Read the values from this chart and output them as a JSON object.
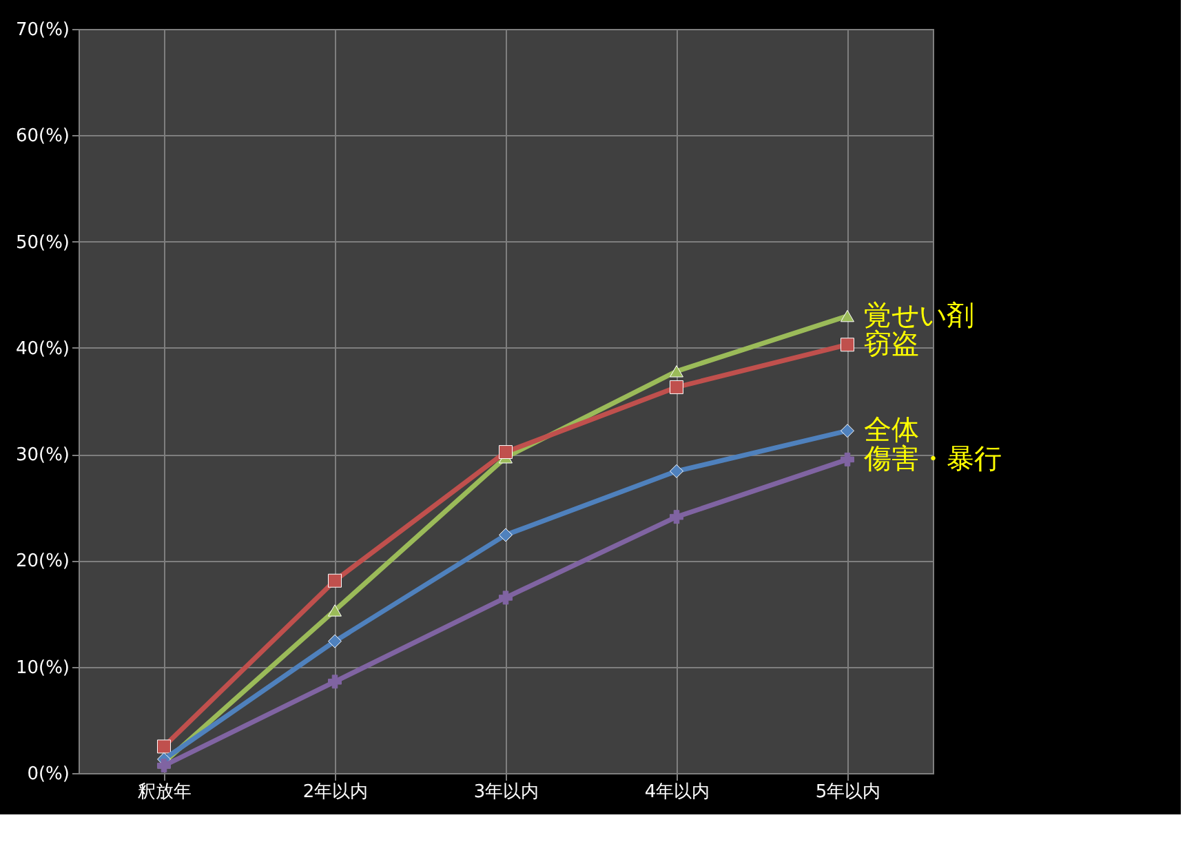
{
  "chart_data": {
    "type": "line",
    "categories": [
      "釈放年",
      "2年以内",
      "3年以内",
      "4年以内",
      "5年以内"
    ],
    "series": [
      {
        "name": "覚せい剤",
        "color": "#9bbb59",
        "marker": "triangle",
        "values": [
          1.0,
          15.3,
          29.7,
          37.8,
          43.0
        ]
      },
      {
        "name": "窃盗",
        "color": "#c0504d",
        "marker": "square",
        "values": [
          2.5,
          18.1,
          30.2,
          36.3,
          40.3
        ]
      },
      {
        "name": "全体",
        "color": "#4f81bd",
        "marker": "diamond",
        "values": [
          1.3,
          12.4,
          22.4,
          28.4,
          32.2
        ]
      },
      {
        "name": "傷害・暴行",
        "color": "#8064a2",
        "marker": "cross",
        "values": [
          0.7,
          8.6,
          16.5,
          24.1,
          29.5
        ]
      }
    ],
    "ylim": [
      0,
      70
    ],
    "yticks": [
      {
        "value": 0,
        "label": "0(%)"
      },
      {
        "value": 10,
        "label": "10(%)"
      },
      {
        "value": 20,
        "label": "20(%)"
      },
      {
        "value": 30,
        "label": "30(%)"
      },
      {
        "value": 40,
        "label": "40(%)"
      },
      {
        "value": 50,
        "label": "50(%)"
      },
      {
        "value": 60,
        "label": "60(%)"
      },
      {
        "value": 70,
        "label": "70(%)"
      }
    ],
    "grid": true,
    "line_style": "solid"
  }
}
